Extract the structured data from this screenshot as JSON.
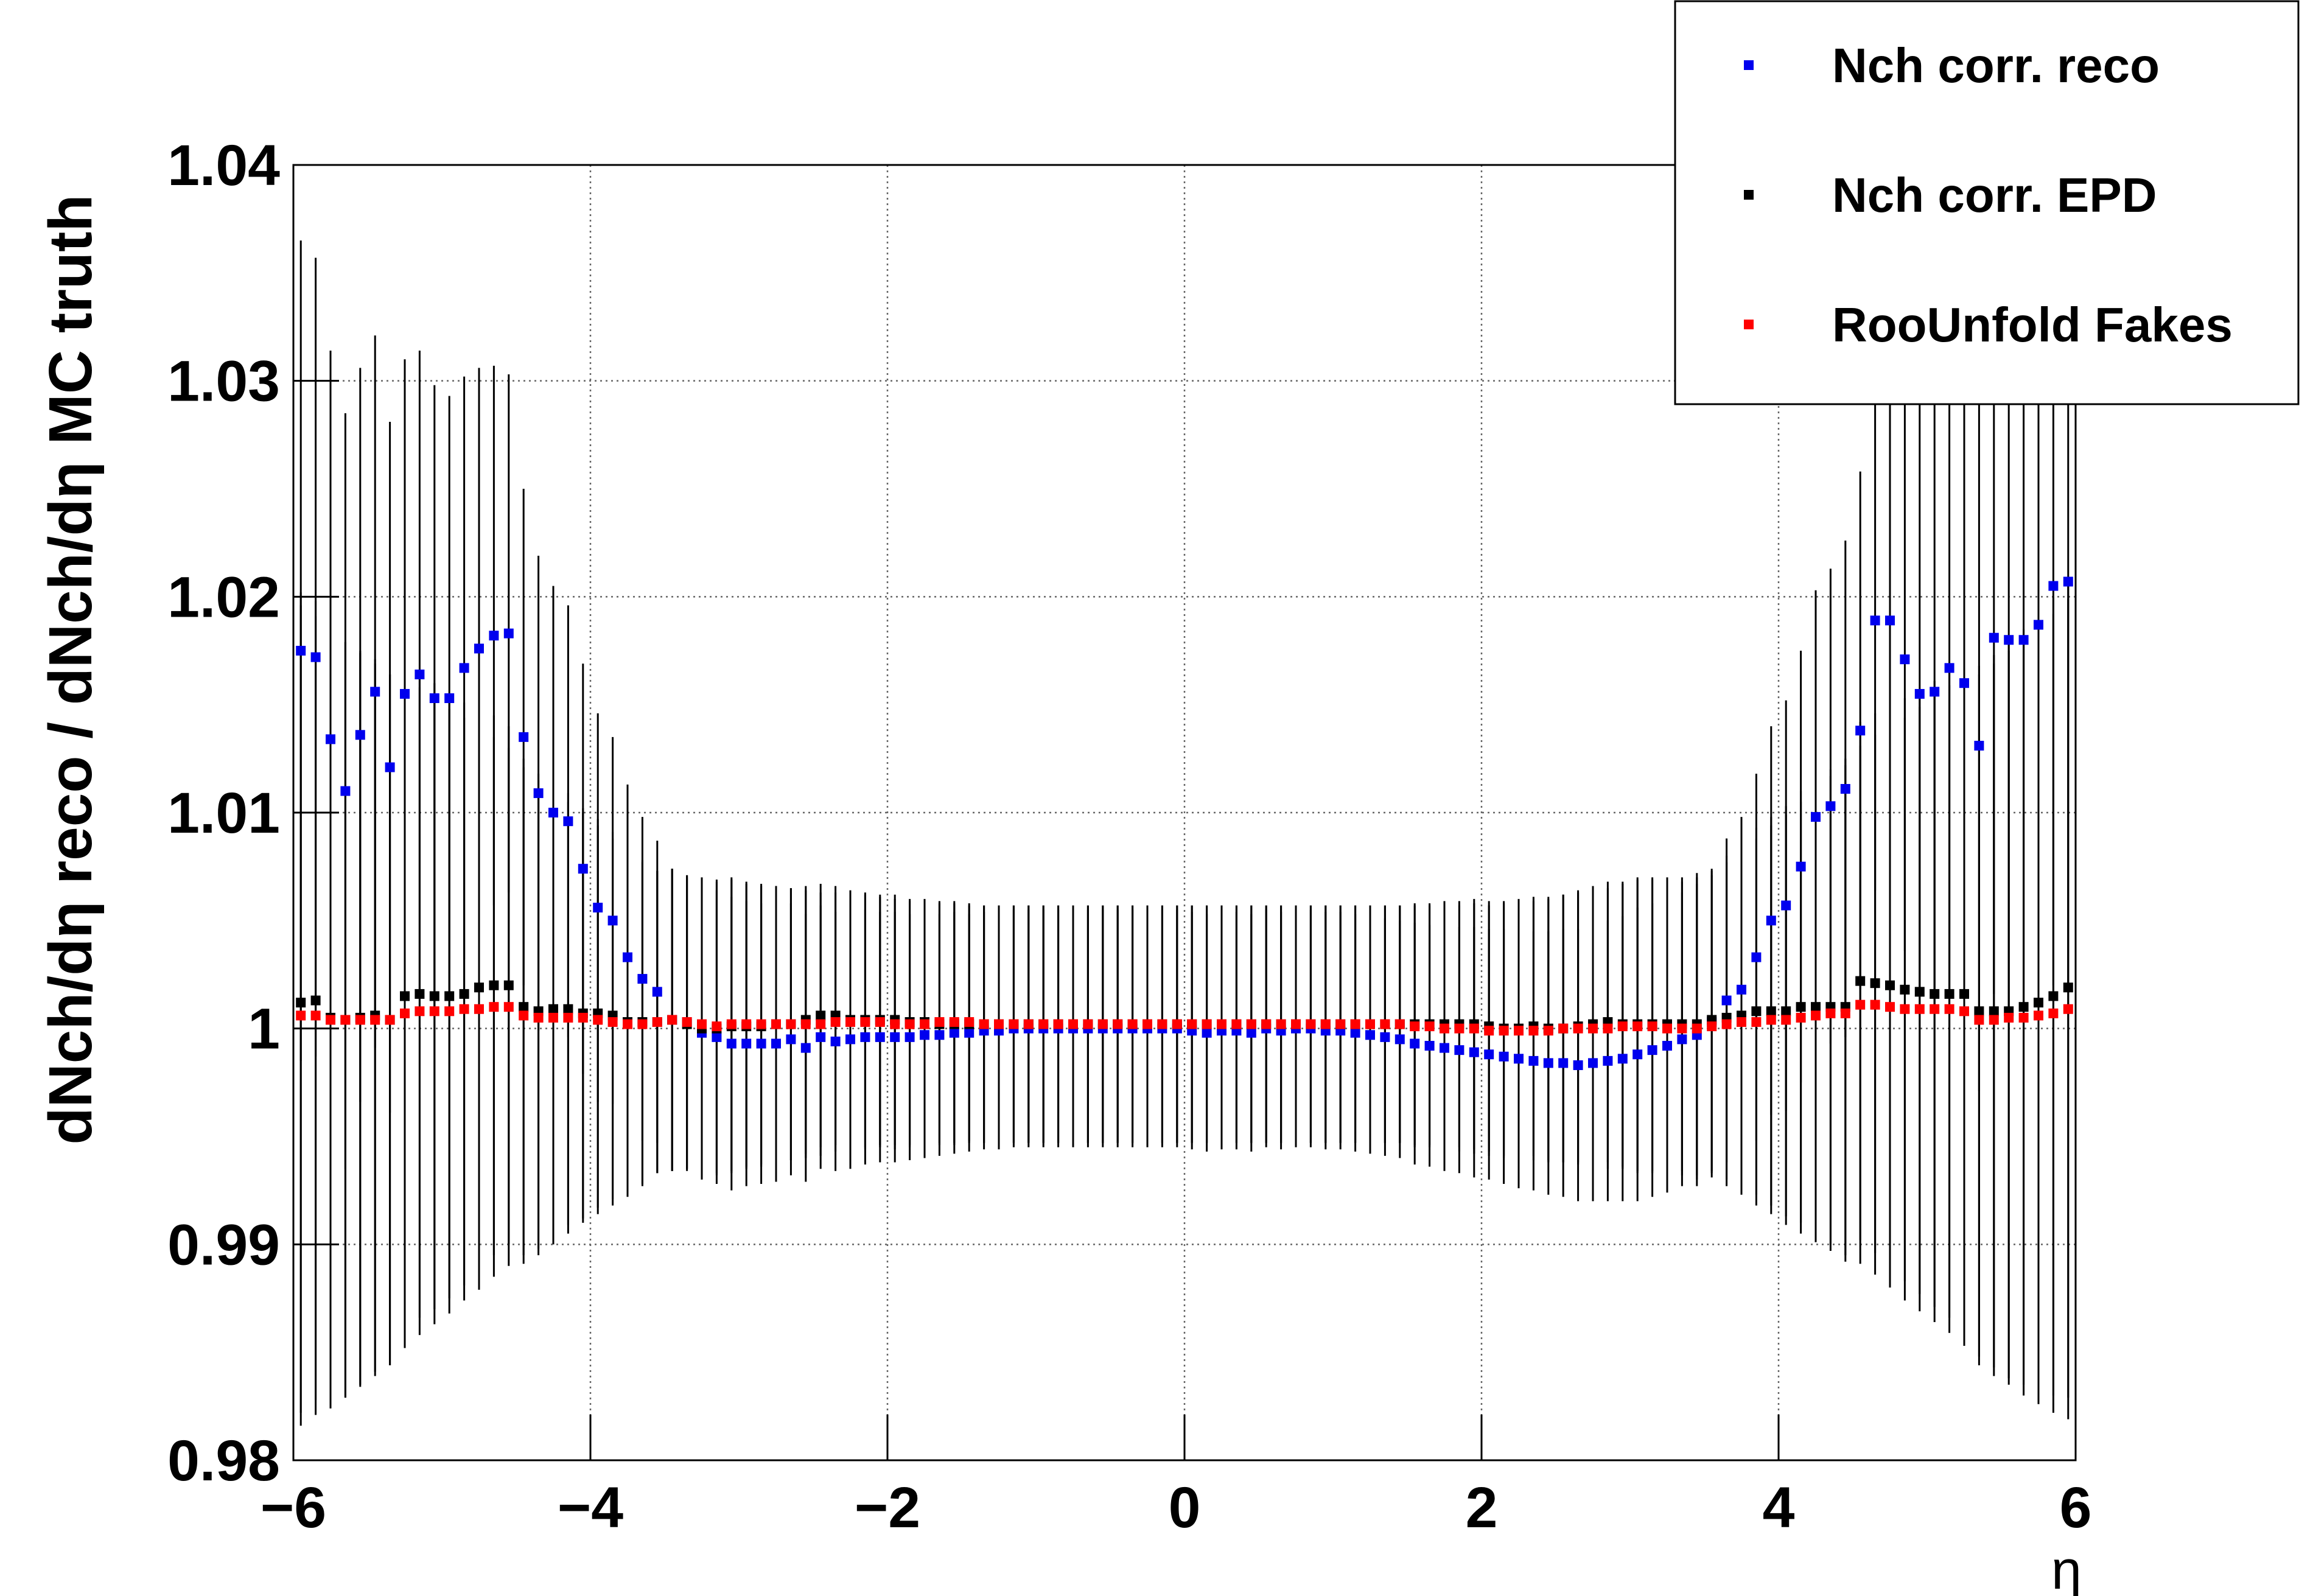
{
  "chart_data": {
    "type": "scatter",
    "x_label": "η",
    "y_label": "dNch/dη reco / dNch/dη MC truth",
    "xlim": [
      -6,
      6
    ],
    "ylim": [
      0.98,
      1.04
    ],
    "xticks": [
      {
        "value": -6,
        "label": "−6"
      },
      {
        "value": -4,
        "label": "−4"
      },
      {
        "value": -2,
        "label": "−2"
      },
      0,
      2,
      4,
      6
    ],
    "yticks": [
      0.98,
      0.99,
      1,
      1.01,
      1.02,
      1.03,
      1.04
    ],
    "grid": true,
    "legend": "top-right",
    "x": [
      -5.95,
      -5.85,
      -5.75,
      -5.65,
      -5.55,
      -5.45,
      -5.35,
      -5.25,
      -5.15,
      -5.05,
      -4.95,
      -4.85,
      -4.75,
      -4.65,
      -4.55,
      -4.45,
      -4.35,
      -4.25,
      -4.15,
      -4.05,
      -3.95,
      -3.85,
      -3.75,
      -3.65,
      -3.55,
      -3.45,
      -3.35,
      -3.25,
      -3.15,
      -3.05,
      -2.95,
      -2.85,
      -2.75,
      -2.65,
      -2.55,
      -2.45,
      -2.35,
      -2.25,
      -2.15,
      -2.05,
      -1.95,
      -1.85,
      -1.75,
      -1.65,
      -1.55,
      -1.45,
      -1.35,
      -1.25,
      -1.15,
      -1.05,
      -0.95,
      -0.85,
      -0.75,
      -0.65,
      -0.55,
      -0.45,
      -0.35,
      -0.25,
      -0.15,
      -0.05,
      0.05,
      0.15,
      0.25,
      0.35,
      0.45,
      0.55,
      0.65,
      0.75,
      0.85,
      0.95,
      1.05,
      1.15,
      1.25,
      1.35,
      1.45,
      1.55,
      1.65,
      1.75,
      1.85,
      1.95,
      2.05,
      2.15,
      2.25,
      2.35,
      2.45,
      2.55,
      2.65,
      2.75,
      2.85,
      2.95,
      3.05,
      3.15,
      3.25,
      3.35,
      3.45,
      3.55,
      3.65,
      3.75,
      3.85,
      3.95,
      4.05,
      4.15,
      4.25,
      4.35,
      4.45,
      4.55,
      4.65,
      4.75,
      4.85,
      4.95,
      5.05,
      5.15,
      5.25,
      5.35,
      5.45,
      5.55,
      5.65,
      5.75,
      5.85,
      5.95
    ],
    "errors": [
      0.019,
      0.0185,
      0.018,
      0.0175,
      0.017,
      0.0165,
      0.016,
      0.0155,
      0.015,
      0.0145,
      0.014,
      0.0135,
      0.013,
      0.0125,
      0.012,
      0.0115,
      0.011,
      0.0105,
      0.01,
      0.0095,
      0.009,
      0.0085,
      0.008,
      0.0075,
      0.007,
      0.007,
      0.0068,
      0.0068,
      0.0068,
      0.0068,
      0.0066,
      0.0065,
      0.0064,
      0.0063,
      0.0062,
      0.0061,
      0.006,
      0.006,
      0.0059,
      0.0058,
      0.0058,
      0.0057,
      0.0057,
      0.0056,
      0.0056,
      0.0055,
      0.0055,
      0.0055,
      0.0055,
      0.0055,
      0.0055,
      0.0055,
      0.0055,
      0.0055,
      0.0055,
      0.0055,
      0.0055,
      0.0055,
      0.0055,
      0.0055,
      0.0055,
      0.0055,
      0.0055,
      0.0055,
      0.0055,
      0.0055,
      0.0055,
      0.0055,
      0.0055,
      0.0055,
      0.0055,
      0.0055,
      0.0055,
      0.0055,
      0.0055,
      0.0056,
      0.0056,
      0.0057,
      0.0057,
      0.0058,
      0.0058,
      0.0059,
      0.006,
      0.006,
      0.0061,
      0.0062,
      0.0063,
      0.0064,
      0.0065,
      0.0066,
      0.0068,
      0.0068,
      0.0068,
      0.0068,
      0.007,
      0.007,
      0.0075,
      0.008,
      0.0085,
      0.009,
      0.0095,
      0.01,
      0.0105,
      0.011,
      0.0115,
      0.012,
      0.0125,
      0.013,
      0.0135,
      0.014,
      0.0145,
      0.015,
      0.0155,
      0.016,
      0.0165,
      0.017,
      0.0175,
      0.018,
      0.0185,
      0.019
    ],
    "series": [
      {
        "name": "Nch corr. reco",
        "color": "#0000ee",
        "values": [
          1.0175,
          1.0172,
          1.0134,
          1.011,
          1.0136,
          1.0156,
          1.0121,
          1.0155,
          1.0164,
          1.0153,
          1.0153,
          1.0167,
          1.0176,
          1.0182,
          1.0183,
          1.0135,
          1.0109,
          1.01,
          1.0096,
          1.0074,
          1.0056,
          1.005,
          1.0033,
          1.0023,
          1.0017,
          1.0004,
          1.0003,
          0.9998,
          0.9996,
          0.9993,
          0.9993,
          0.9993,
          0.9993,
          0.9995,
          0.9991,
          0.9996,
          0.9994,
          0.9995,
          0.9996,
          0.9996,
          0.9996,
          0.9996,
          0.9997,
          0.9997,
          0.9998,
          0.9998,
          0.9999,
          0.9999,
          1.0,
          1.0,
          1.0,
          1.0,
          1.0,
          1.0,
          1.0,
          1.0,
          1.0,
          1.0,
          1.0,
          1.0,
          0.9999,
          0.9998,
          0.9999,
          0.9999,
          0.9998,
          1.0,
          0.9999,
          1.0,
          1.0,
          0.9999,
          0.9999,
          0.9998,
          0.9997,
          0.9996,
          0.9995,
          0.9993,
          0.9992,
          0.9991,
          0.999,
          0.9989,
          0.9988,
          0.9987,
          0.9986,
          0.9985,
          0.9984,
          0.9984,
          0.9983,
          0.9984,
          0.9985,
          0.9986,
          0.9988,
          0.999,
          0.9992,
          0.9995,
          0.9997,
          1.0003,
          1.0013,
          1.0018,
          1.0033,
          1.005,
          1.0057,
          1.0075,
          1.0098,
          1.0103,
          1.0111,
          1.0138,
          1.0189,
          1.0189,
          1.0171,
          1.0155,
          1.0156,
          1.0167,
          1.016,
          1.0131,
          1.0181,
          1.018,
          1.018,
          1.0187,
          1.0205,
          1.0207
        ]
      },
      {
        "name": "Nch corr. EPD",
        "color": "#000000",
        "values": [
          1.0012,
          1.0013,
          1.0005,
          1.0004,
          1.0005,
          1.0006,
          1.0004,
          1.0015,
          1.0016,
          1.0015,
          1.0015,
          1.0016,
          1.0019,
          1.002,
          1.002,
          1.001,
          1.0008,
          1.0009,
          1.0009,
          1.0007,
          1.0007,
          1.0006,
          1.0003,
          1.0003,
          1.0003,
          1.0004,
          1.0002,
          1.0,
          1.0,
          1.0001,
          1.0001,
          1.0001,
          1.0002,
          1.0002,
          1.0004,
          1.0006,
          1.0006,
          1.0004,
          1.0004,
          1.0004,
          1.0004,
          1.0003,
          1.0003,
          1.0002,
          1.0002,
          1.0002,
          1.0002,
          1.0002,
          1.0002,
          1.0002,
          1.0002,
          1.0002,
          1.0002,
          1.0002,
          1.0002,
          1.0002,
          1.0002,
          1.0002,
          1.0002,
          1.0002,
          1.0002,
          1.0002,
          1.0002,
          1.0002,
          1.0002,
          1.0002,
          1.0002,
          1.0002,
          1.0002,
          1.0002,
          1.0002,
          1.0002,
          1.0002,
          1.0002,
          1.0002,
          1.0002,
          1.0002,
          1.0002,
          1.0002,
          1.0002,
          1.0001,
          1.0,
          1.0,
          1.0001,
          1.0,
          1.0,
          1.0001,
          1.0002,
          1.0003,
          1.0002,
          1.0002,
          1.0002,
          1.0002,
          1.0002,
          1.0002,
          1.0004,
          1.0005,
          1.0006,
          1.0008,
          1.0008,
          1.0008,
          1.001,
          1.001,
          1.001,
          1.001,
          1.0022,
          1.0021,
          1.002,
          1.0018,
          1.0017,
          1.0016,
          1.0016,
          1.0016,
          1.0008,
          1.0008,
          1.0008,
          1.001,
          1.0012,
          1.0015,
          1.0019
        ]
      },
      {
        "name": "RooUnfold Fakes",
        "color": "#ff0000",
        "values": [
          1.0006,
          1.0006,
          1.0004,
          1.0004,
          1.0004,
          1.0004,
          1.0004,
          1.0007,
          1.0008,
          1.0008,
          1.0008,
          1.0009,
          1.0009,
          1.001,
          1.001,
          1.0006,
          1.0005,
          1.0005,
          1.0005,
          1.0005,
          1.0004,
          1.0003,
          1.0002,
          1.0002,
          1.0003,
          1.0004,
          1.0003,
          1.0002,
          1.0001,
          1.0002,
          1.0002,
          1.0002,
          1.0002,
          1.0002,
          1.0002,
          1.0002,
          1.0003,
          1.0003,
          1.0003,
          1.0003,
          1.0002,
          1.0002,
          1.0002,
          1.0003,
          1.0003,
          1.0003,
          1.0002,
          1.0002,
          1.0002,
          1.0002,
          1.0002,
          1.0002,
          1.0002,
          1.0002,
          1.0002,
          1.0002,
          1.0002,
          1.0002,
          1.0002,
          1.0002,
          1.0002,
          1.0002,
          1.0002,
          1.0002,
          1.0002,
          1.0002,
          1.0002,
          1.0002,
          1.0002,
          1.0002,
          1.0002,
          1.0002,
          1.0002,
          1.0002,
          1.0002,
          1.0001,
          1.0001,
          1.0,
          1.0,
          1.0,
          0.9999,
          0.9999,
          0.9999,
          0.9999,
          0.9999,
          1.0,
          1.0,
          1.0,
          1.0,
          1.0001,
          1.0001,
          1.0001,
          1.0,
          1.0,
          1.0,
          1.0001,
          1.0002,
          1.0003,
          1.0003,
          1.0004,
          1.0004,
          1.0005,
          1.0006,
          1.0007,
          1.0007,
          1.0011,
          1.0011,
          1.001,
          1.0009,
          1.0009,
          1.0009,
          1.0009,
          1.0008,
          1.0004,
          1.0004,
          1.0005,
          1.0005,
          1.0006,
          1.0007,
          1.0009
        ]
      }
    ]
  }
}
